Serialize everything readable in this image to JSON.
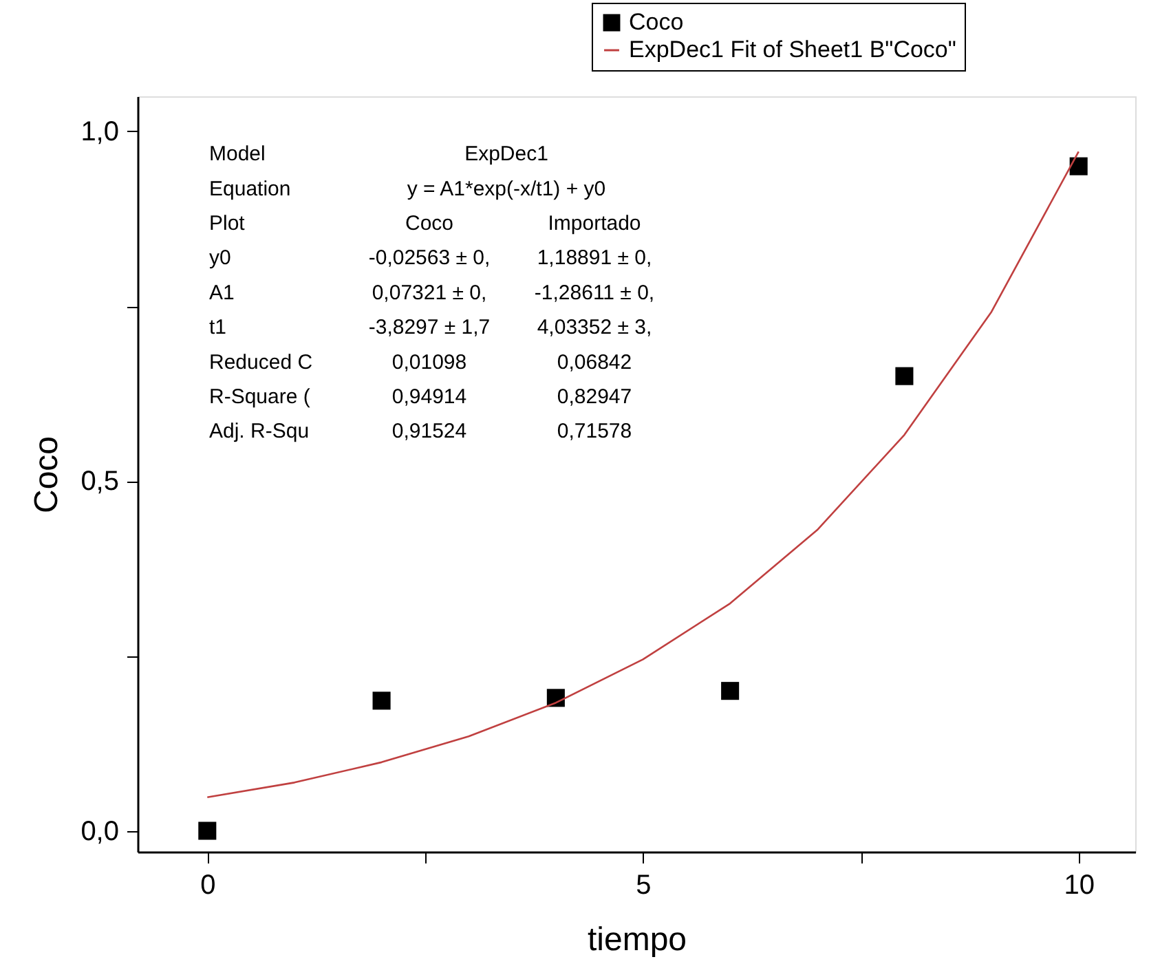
{
  "chart_data": {
    "type": "scatter",
    "xlabel": "tiempo",
    "ylabel": "Coco",
    "xlim": [
      -0.8,
      10.65
    ],
    "ylim": [
      -0.03,
      1.05
    ],
    "xticks": [
      0,
      {
        "value": 2.5,
        "label": null
      },
      5,
      {
        "value": 7.5,
        "label": null
      },
      10
    ],
    "yticks": [
      {
        "value": 0,
        "label": "0,0"
      },
      {
        "value": 0.25,
        "label": null
      },
      {
        "value": 0.5,
        "label": "0,5"
      },
      {
        "value": 0.75,
        "label": null
      },
      {
        "value": 1.0,
        "label": "1,0"
      }
    ],
    "grid": false,
    "legend": "top right",
    "series": [
      {
        "name": "Coco",
        "marker": "square",
        "color": "#000000",
        "x": [
          0,
          2,
          4,
          6,
          8,
          10
        ],
        "values": [
          0.0,
          0.186,
          0.19,
          0.2,
          0.65,
          0.95
        ]
      },
      {
        "name": "ExpDec1 Fit of Sheet1 B\"Coco\"",
        "type": "line",
        "marker": "none",
        "line_style": "solid",
        "color": "#c04040",
        "x": [
          0,
          1,
          2,
          3,
          4,
          5,
          6,
          7,
          8,
          9,
          10
        ],
        "values": [
          0.048,
          0.069,
          0.098,
          0.135,
          0.183,
          0.245,
          0.325,
          0.43,
          0.566,
          0.742,
          0.971
        ]
      }
    ],
    "annotations": [
      "Model",
      "ExpDec1",
      "Equation",
      "y = A1*exp(-x/t1) + y0",
      "Plot",
      "Coco",
      "Importado",
      "y0",
      "-0,02563 ± 0,",
      "1,18891 ± 0,",
      "A1",
      "0,07321 ± 0,",
      "-1,28611 ± 0,",
      "t1",
      "-3,8297 ± 1,7",
      "4,03352 ± 3,",
      "Reduced C",
      "0,01098",
      "0,06842",
      "R-Square (",
      "0,94914",
      "0,82947",
      "Adj. R-Squ",
      "0,91524",
      "0,71578"
    ]
  }
}
